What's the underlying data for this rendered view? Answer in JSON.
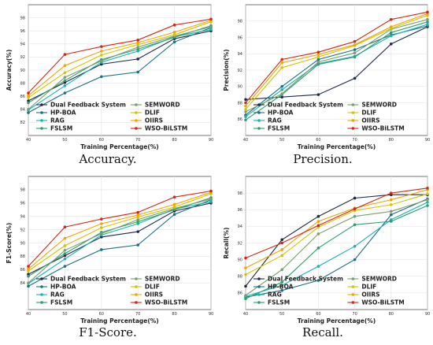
{
  "series_colors": [
    "#1f2a44",
    "#1d6f87",
    "#19b3b3",
    "#2e9e6e",
    "#7aa06a",
    "#d2c400",
    "#f2a400",
    "#d62516"
  ],
  "chart_data": [
    {
      "type": "line",
      "caption": "Accuracy.",
      "xlabel": "Training Percentage(%)",
      "ylabel": "Accuracy(%)",
      "x": [
        40,
        50,
        60,
        70,
        80,
        90
      ],
      "xlim": [
        40,
        90
      ],
      "ylim": [
        80,
        100
      ],
      "yticks": [
        82,
        84,
        86,
        88,
        90,
        92,
        94,
        96,
        98
      ],
      "grid": true,
      "legend_position": "lower-center",
      "series": [
        {
          "name": "Dual Feedback System",
          "values": [
            85.3,
            88.1,
            90.9,
            91.7,
            94.8,
            96.0
          ]
        },
        {
          "name": "HP-BOA",
          "values": [
            83.5,
            86.5,
            89.0,
            89.7,
            94.3,
            96.5
          ]
        },
        {
          "name": "RAG",
          "values": [
            83.9,
            87.6,
            91.2,
            92.9,
            95.1,
            96.2
          ]
        },
        {
          "name": "FSLSM",
          "values": [
            85.0,
            88.4,
            91.6,
            93.2,
            95.0,
            96.8
          ]
        },
        {
          "name": "SEMWORD",
          "values": [
            84.0,
            88.9,
            91.4,
            93.5,
            95.2,
            96.6
          ]
        },
        {
          "name": "DLIF",
          "values": [
            85.8,
            89.6,
            92.3,
            93.9,
            95.4,
            97.4
          ]
        },
        {
          "name": "OIIRS",
          "values": [
            86.1,
            90.7,
            92.9,
            94.2,
            95.8,
            97.6
          ]
        },
        {
          "name": "WSO-BiLSTM",
          "values": [
            86.5,
            92.4,
            93.6,
            94.6,
            96.9,
            97.8
          ]
        }
      ]
    },
    {
      "type": "line",
      "caption": "Precision.",
      "xlabel": "Training Percentage(%)",
      "ylabel": "Precision(%)",
      "x": [
        40,
        50,
        60,
        70,
        80,
        90
      ],
      "xlim": [
        40,
        90
      ],
      "ylim": [
        84,
        100
      ],
      "yticks": [
        86,
        88,
        90,
        92,
        94,
        96,
        98
      ],
      "grid": true,
      "legend_position": "lower-center",
      "series": [
        {
          "name": "Dual Feedback System",
          "values": [
            88.4,
            88.7,
            89.0,
            91.0,
            95.2,
            97.3
          ]
        },
        {
          "name": "HP-BOA",
          "values": [
            86.5,
            90.0,
            93.3,
            94.5,
            96.3,
            97.4
          ]
        },
        {
          "name": "RAG",
          "values": [
            86.3,
            89.6,
            92.8,
            93.7,
            96.2,
            97.6
          ]
        },
        {
          "name": "FSLSM",
          "values": [
            85.9,
            89.0,
            92.7,
            93.6,
            96.6,
            97.9
          ]
        },
        {
          "name": "SEMWORD",
          "values": [
            86.9,
            89.1,
            93.0,
            94.1,
            97.0,
            98.2
          ]
        },
        {
          "name": "DLIF",
          "values": [
            87.2,
            92.3,
            93.6,
            95.0,
            97.1,
            98.7
          ]
        },
        {
          "name": "OIIRS",
          "values": [
            87.6,
            92.9,
            93.9,
            95.1,
            97.3,
            98.9
          ]
        },
        {
          "name": "WSO-BiLSTM",
          "values": [
            88.0,
            93.3,
            94.2,
            95.5,
            98.2,
            99.1
          ]
        }
      ]
    },
    {
      "type": "line",
      "caption": "F1-Score.",
      "xlabel": "Training Percentage(%)",
      "ylabel": "F1-Score(%)",
      "x": [
        40,
        50,
        60,
        70,
        80,
        90
      ],
      "xlim": [
        40,
        90
      ],
      "ylim": [
        80,
        100
      ],
      "yticks": [
        84,
        86,
        88,
        90,
        92,
        94,
        96,
        98
      ],
      "grid": true,
      "legend_position": "lower-center",
      "series": [
        {
          "name": "Dual Feedback System",
          "values": [
            85.3,
            88.1,
            90.9,
            91.7,
            94.8,
            96.0
          ]
        },
        {
          "name": "HP-BOA",
          "values": [
            83.5,
            86.5,
            89.0,
            89.7,
            94.3,
            96.5
          ]
        },
        {
          "name": "RAG",
          "values": [
            83.9,
            87.6,
            91.2,
            92.9,
            95.1,
            96.2
          ]
        },
        {
          "name": "FSLSM",
          "values": [
            85.0,
            88.4,
            91.6,
            93.2,
            95.0,
            96.8
          ]
        },
        {
          "name": "SEMWORD",
          "values": [
            84.0,
            88.9,
            91.4,
            93.5,
            95.2,
            96.6
          ]
        },
        {
          "name": "DLIF",
          "values": [
            85.8,
            89.6,
            92.3,
            93.9,
            95.4,
            97.4
          ]
        },
        {
          "name": "OIIRS",
          "values": [
            86.1,
            90.7,
            92.9,
            94.2,
            95.8,
            97.6
          ]
        },
        {
          "name": "WSO-BiLSTM",
          "values": [
            86.5,
            92.4,
            93.6,
            94.6,
            96.9,
            97.8
          ]
        }
      ]
    },
    {
      "type": "line",
      "caption": "Recall.",
      "xlabel": "Training Percentage(%)",
      "ylabel": "Recall(%)",
      "x": [
        40,
        50,
        60,
        70,
        80,
        90
      ],
      "xlim": [
        40,
        90
      ],
      "ylim": [
        84,
        100
      ],
      "yticks": [
        86,
        88,
        90,
        92,
        94,
        96,
        98
      ],
      "grid": true,
      "legend_position": "lower-center",
      "series": [
        {
          "name": "Dual Feedback System",
          "values": [
            86.8,
            92.4,
            95.2,
            97.4,
            97.8,
            97.8
          ]
        },
        {
          "name": "HP-BOA",
          "values": [
            85.5,
            86.3,
            87.5,
            90.0,
            95.4,
            97.3
          ]
        },
        {
          "name": "RAG",
          "values": [
            85.6,
            86.9,
            89.2,
            91.6,
            94.8,
            96.9
          ]
        },
        {
          "name": "FSLSM",
          "values": [
            85.3,
            87.3,
            91.4,
            94.2,
            94.6,
            96.5
          ]
        },
        {
          "name": "SEMWORD",
          "values": [
            85.7,
            88.8,
            93.1,
            95.2,
            95.8,
            97.2
          ]
        },
        {
          "name": "DLIF",
          "values": [
            88.2,
            90.5,
            93.9,
            95.9,
            96.6,
            97.9
          ]
        },
        {
          "name": "OIIRS",
          "values": [
            89.0,
            91.2,
            94.6,
            96.2,
            97.2,
            98.4
          ]
        },
        {
          "name": "WSO-BiLSTM",
          "values": [
            90.2,
            92.0,
            94.1,
            96.1,
            98.0,
            98.6
          ]
        }
      ]
    }
  ]
}
